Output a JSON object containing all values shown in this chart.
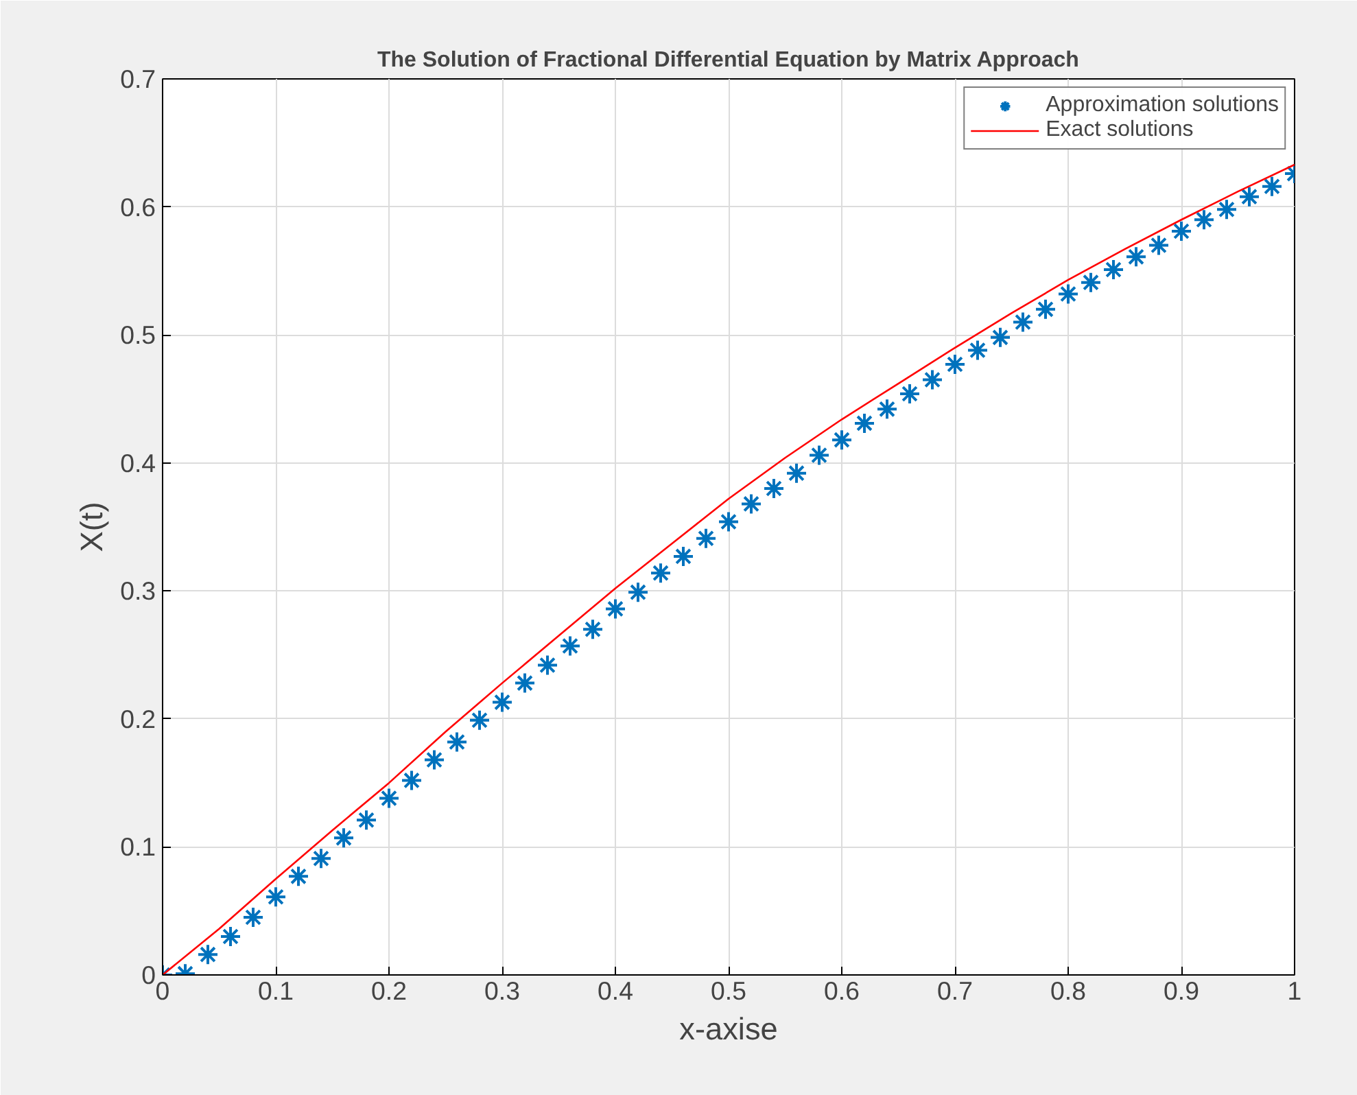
{
  "chart_data": {
    "type": "line",
    "title": "The Solution of Fractional Differential Equation by Matrix Approach",
    "xlabel": "x-axise",
    "ylabel": "X(t)",
    "xlim": [
      0,
      1
    ],
    "ylim": [
      0,
      0.7
    ],
    "xticks": [
      0,
      0.1,
      0.2,
      0.3,
      0.4,
      0.5,
      0.6,
      0.7,
      0.8,
      0.9,
      1
    ],
    "yticks": [
      0,
      0.1,
      0.2,
      0.3,
      0.4,
      0.5,
      0.6,
      0.7
    ],
    "grid": true,
    "legend": "top right",
    "series": [
      {
        "name": "Approximation solutions",
        "type": "scatter",
        "marker": "cross",
        "color": "#0072bd",
        "x": [
          0,
          0.02,
          0.04,
          0.06,
          0.08,
          0.1,
          0.12,
          0.14,
          0.16,
          0.18,
          0.2,
          0.22,
          0.24,
          0.26,
          0.28,
          0.3,
          0.32,
          0.34,
          0.36,
          0.38,
          0.4,
          0.42,
          0.44,
          0.46,
          0.48,
          0.5,
          0.52,
          0.54,
          0.56,
          0.58,
          0.6,
          0.62,
          0.64,
          0.66,
          0.68,
          0.7,
          0.72,
          0.74,
          0.76,
          0.78,
          0.8,
          0.82,
          0.84,
          0.86,
          0.88,
          0.9,
          0.92,
          0.94,
          0.96,
          0.98,
          1
        ],
        "values": [
          0,
          0.001,
          0.016,
          0.03,
          0.045,
          0.061,
          0.077,
          0.091,
          0.107,
          0.121,
          0.138,
          0.152,
          0.168,
          0.182,
          0.199,
          0.213,
          0.228,
          0.242,
          0.257,
          0.27,
          0.286,
          0.299,
          0.314,
          0.327,
          0.341,
          0.354,
          0.368,
          0.38,
          0.392,
          0.406,
          0.418,
          0.431,
          0.442,
          0.454,
          0.465,
          0.477,
          0.488,
          0.498,
          0.51,
          0.52,
          0.532,
          0.541,
          0.551,
          0.561,
          0.57,
          0.581,
          0.59,
          0.598,
          0.608,
          0.616,
          0.626
        ]
      },
      {
        "name": "Exact solutions",
        "marker": "none",
        "line_style": "solid",
        "color": "#ff0000",
        "x": [
          0,
          0.05,
          0.1,
          0.15,
          0.2,
          0.25,
          0.3,
          0.35,
          0.4,
          0.45,
          0.5,
          0.55,
          0.6,
          0.65,
          0.7,
          0.75,
          0.8,
          0.85,
          0.9,
          0.95,
          1
        ],
        "values": [
          0,
          0.036,
          0.075,
          0.113,
          0.15,
          0.19,
          0.228,
          0.265,
          0.302,
          0.337,
          0.372,
          0.404,
          0.434,
          0.462,
          0.49,
          0.517,
          0.543,
          0.567,
          0.59,
          0.612,
          0.633
        ]
      }
    ]
  }
}
